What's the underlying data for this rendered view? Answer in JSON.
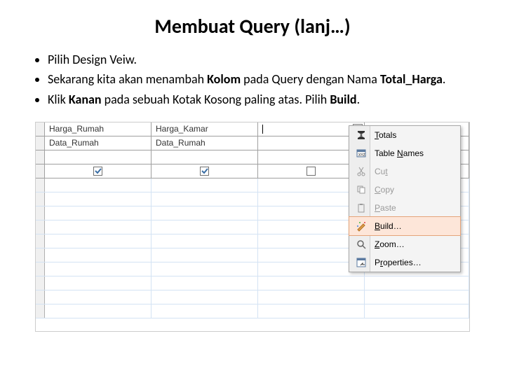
{
  "title": "Membuat  Query (lanj…)",
  "bullets": [
    {
      "pre": "Pilih Design Veiw."
    },
    {
      "pre": "Sekarang kita akan menambah ",
      "b1": "Kolom",
      "mid1": " pada Query dengan Nama ",
      "b2": "Total_Harga",
      "post": "."
    },
    {
      "pre": "Klik ",
      "b1": "Kanan",
      "mid1": " pada sebuah Kotak Kosong paling atas. Pilih ",
      "b2": "Build",
      "post": "."
    }
  ],
  "grid": {
    "row1": {
      "c1": "Harga_Rumah",
      "c2": "Harga_Kamar",
      "c3": ""
    },
    "row2": {
      "c1": "Data_Rumah",
      "c2": "Data_Rumah",
      "c3": ""
    },
    "checks": {
      "c1": true,
      "c2": true,
      "c3": false
    },
    "colors": {
      "grid_line": "#d4e3f4",
      "header_line": "#a0a0a0",
      "check_tick": "#3a6ea5"
    }
  },
  "menu": {
    "items": [
      {
        "key": "totals",
        "label_pre": "",
        "label_u": "T",
        "label_post": "otals",
        "disabled": false
      },
      {
        "key": "tablenames",
        "label_pre": "Table ",
        "label_u": "N",
        "label_post": "ames",
        "disabled": false
      },
      {
        "key": "cut",
        "label_pre": "Cu",
        "label_u": "t",
        "label_post": "",
        "disabled": true
      },
      {
        "key": "copy",
        "label_pre": "",
        "label_u": "C",
        "label_post": "opy",
        "disabled": true
      },
      {
        "key": "paste",
        "label_pre": "",
        "label_u": "P",
        "label_post": "aste",
        "disabled": true
      },
      {
        "key": "build",
        "label_pre": "",
        "label_u": "B",
        "label_post": "uild…",
        "disabled": false,
        "highlighted": true
      },
      {
        "key": "zoom",
        "label_pre": "",
        "label_u": "Z",
        "label_post": "oom…",
        "disabled": false
      },
      {
        "key": "properties",
        "label_pre": "P",
        "label_u": "r",
        "label_post": "operties…",
        "disabled": false
      }
    ],
    "highlight_bg": "#fde6d9",
    "highlight_border": "#e5a47a"
  }
}
